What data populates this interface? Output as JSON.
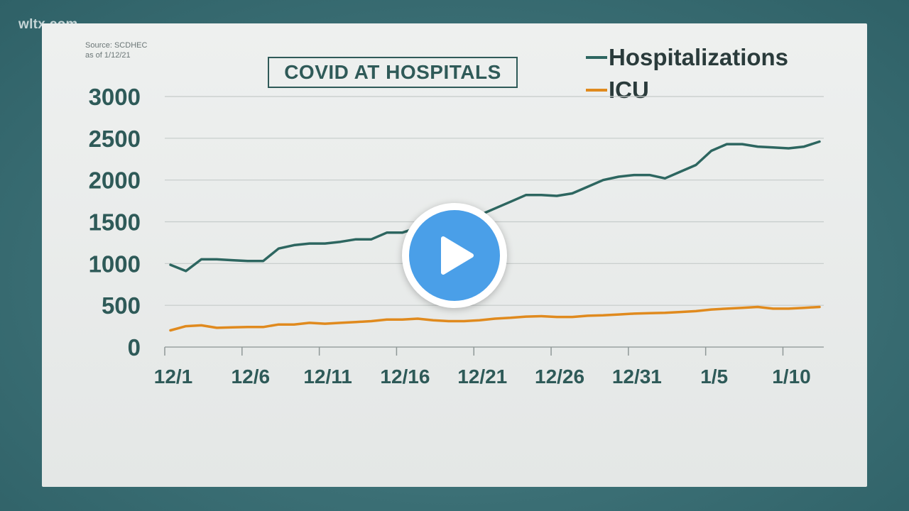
{
  "watermark": "wltx.com",
  "source": {
    "line1": "Source: SCDHEC",
    "line2": "as of 1/12/21"
  },
  "title": "COVID AT HOSPITALS",
  "video": {
    "play_icon": "play-icon"
  },
  "colors": {
    "hospitalizations": "#2d6660",
    "icu": "#e08a1e",
    "axis_text": "#2e5a58",
    "grid": "#c6cbca",
    "play": "#4a9fe8"
  },
  "chart_data": {
    "type": "line",
    "title": "COVID AT HOSPITALS",
    "xlabel": "",
    "ylabel": "",
    "ylim": [
      0,
      3000
    ],
    "yticks": [
      0,
      500,
      1000,
      1500,
      2000,
      2500,
      3000
    ],
    "xticks": [
      "12/1",
      "12/6",
      "12/11",
      "12/16",
      "12/21",
      "12/26",
      "12/31",
      "1/5",
      "1/10"
    ],
    "grid": true,
    "legend_position": "top-right",
    "x": [
      "12/1",
      "12/2",
      "12/3",
      "12/4",
      "12/5",
      "12/6",
      "12/7",
      "12/8",
      "12/9",
      "12/10",
      "12/11",
      "12/12",
      "12/13",
      "12/14",
      "12/15",
      "12/16",
      "12/17",
      "12/18",
      "12/19",
      "12/20",
      "12/21",
      "12/22",
      "12/23",
      "12/24",
      "12/25",
      "12/26",
      "12/27",
      "12/28",
      "12/29",
      "12/30",
      "12/31",
      "1/1",
      "1/2",
      "1/3",
      "1/4",
      "1/5",
      "1/6",
      "1/7",
      "1/8",
      "1/9",
      "1/10",
      "1/11",
      "1/12"
    ],
    "series": [
      {
        "name": "Hospitalizations",
        "values": [
          985,
          910,
          1050,
          1050,
          1040,
          1030,
          1030,
          1180,
          1220,
          1240,
          1240,
          1260,
          1290,
          1290,
          1370,
          1370,
          1430,
          1460,
          1500,
          1530,
          1580,
          1660,
          1740,
          1820,
          1820,
          1810,
          1840,
          1920,
          2000,
          2040,
          2060,
          2060,
          2020,
          2100,
          2180,
          2350,
          2430,
          2430,
          2400,
          2390,
          2380,
          2400,
          2460
        ]
      },
      {
        "name": "ICU",
        "values": [
          200,
          250,
          260,
          230,
          235,
          240,
          240,
          270,
          270,
          290,
          280,
          290,
          300,
          310,
          330,
          330,
          340,
          320,
          310,
          310,
          320,
          340,
          350,
          365,
          370,
          360,
          360,
          375,
          380,
          390,
          400,
          405,
          410,
          420,
          430,
          450,
          460,
          470,
          480,
          460,
          460,
          470,
          480
        ]
      }
    ]
  }
}
